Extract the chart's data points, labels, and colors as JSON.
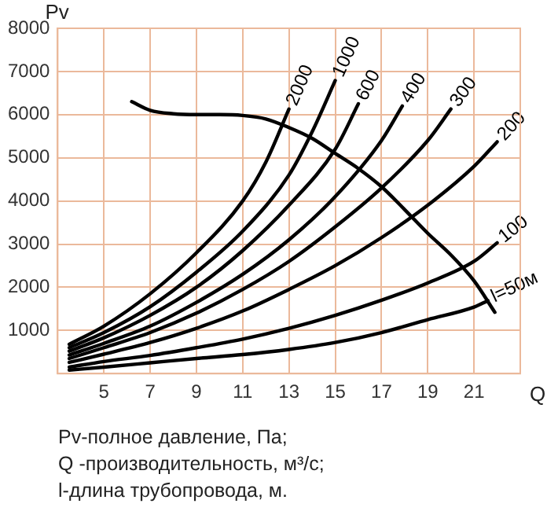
{
  "chart_data": {
    "type": "line",
    "xlabel": "Q",
    "ylabel": "Pv",
    "xlim": [
      3,
      23
    ],
    "xticks": [
      5,
      7,
      9,
      11,
      13,
      15,
      17,
      19,
      21
    ],
    "ylim": [
      0,
      8000
    ],
    "yticks": [
      1000,
      2000,
      3000,
      4000,
      5000,
      6000,
      7000,
      8000
    ],
    "grid": true,
    "legend": false,
    "marker": "none",
    "line_style": "solid",
    "series": [
      {
        "name": "2000",
        "color": "#000000",
        "x": [
          3.5,
          5,
          7,
          9,
          11,
          12,
          13
        ],
        "values": [
          680,
          1100,
          1850,
          2800,
          4000,
          4900,
          6130
        ]
      },
      {
        "name": "1000",
        "color": "#000000",
        "x": [
          3.5,
          5,
          7,
          9,
          11,
          13,
          14,
          15
        ],
        "values": [
          600,
          950,
          1550,
          2350,
          3300,
          4600,
          5600,
          6790
        ]
      },
      {
        "name": "600",
        "color": "#000000",
        "x": [
          3.5,
          5,
          7,
          9,
          11,
          13,
          15,
          16
        ],
        "values": [
          520,
          830,
          1350,
          2000,
          2850,
          3900,
          5200,
          6250
        ]
      },
      {
        "name": "400",
        "color": "#000000",
        "x": [
          3.5,
          5,
          7,
          9,
          11,
          13,
          15,
          17,
          17.9
        ],
        "values": [
          430,
          700,
          1100,
          1650,
          2300,
          3100,
          4100,
          5400,
          6200
        ]
      },
      {
        "name": "300",
        "color": "#000000",
        "x": [
          3.5,
          5,
          7,
          9,
          11,
          13,
          15,
          17,
          19,
          20
        ],
        "values": [
          350,
          600,
          950,
          1400,
          1950,
          2600,
          3400,
          4300,
          5400,
          6130
        ]
      },
      {
        "name": "200",
        "color": "#000000",
        "x": [
          3.5,
          5,
          7,
          9,
          11,
          13,
          15,
          17,
          19,
          21,
          22
        ],
        "values": [
          260,
          450,
          720,
          1050,
          1450,
          1950,
          2500,
          3150,
          3900,
          4800,
          5370
        ]
      },
      {
        "name": "100",
        "color": "#000000",
        "x": [
          3.5,
          5,
          7,
          9,
          11,
          13,
          15,
          17,
          19,
          21,
          22
        ],
        "values": [
          150,
          280,
          420,
          600,
          800,
          1050,
          1350,
          1700,
          2100,
          2600,
          3030
        ]
      },
      {
        "name": "l=50м",
        "color": "#000000",
        "x": [
          3.5,
          5,
          7,
          9,
          11,
          13,
          15,
          17,
          19,
          21,
          21.6
        ],
        "values": [
          80,
          150,
          250,
          350,
          440,
          560,
          720,
          950,
          1250,
          1540,
          1690
        ]
      },
      {
        "color": "#000000",
        "x": [
          6.2,
          7,
          8,
          9,
          10,
          11,
          12,
          13,
          14,
          15,
          16,
          17,
          18,
          19,
          20,
          21,
          21.9
        ],
        "values": [
          6300,
          6100,
          6020,
          6000,
          6000,
          5980,
          5900,
          5700,
          5450,
          5100,
          4750,
          4330,
          3800,
          3250,
          2750,
          2150,
          1420
        ]
      }
    ],
    "annotations": [
      "Pv-полное давление, Па;",
      "Q -производительность, м³/с;",
      "l-длина трубопровода, м."
    ]
  }
}
